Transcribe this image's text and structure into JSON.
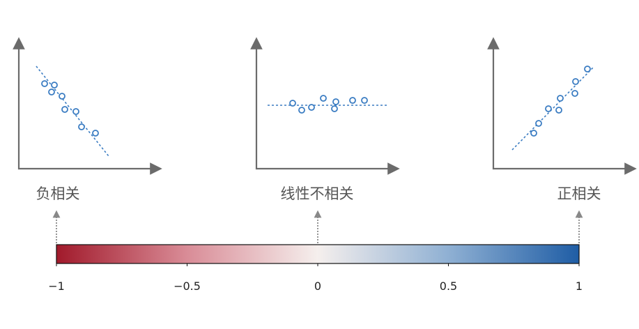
{
  "panels": [
    {
      "label": "负相关"
    },
    {
      "label": "线性不相关"
    },
    {
      "label": "正相关"
    }
  ],
  "colorbar": {
    "lim": [
      -1,
      1
    ],
    "ticks": [
      {
        "value": -1,
        "label": "−1"
      },
      {
        "value": -0.5,
        "label": "−0.5"
      },
      0,
      0.5,
      1
    ],
    "colors": [
      "#a11a2b",
      "#d98c97",
      "#f5efed",
      "#8fb0d3",
      "#1f5da5"
    ]
  }
}
